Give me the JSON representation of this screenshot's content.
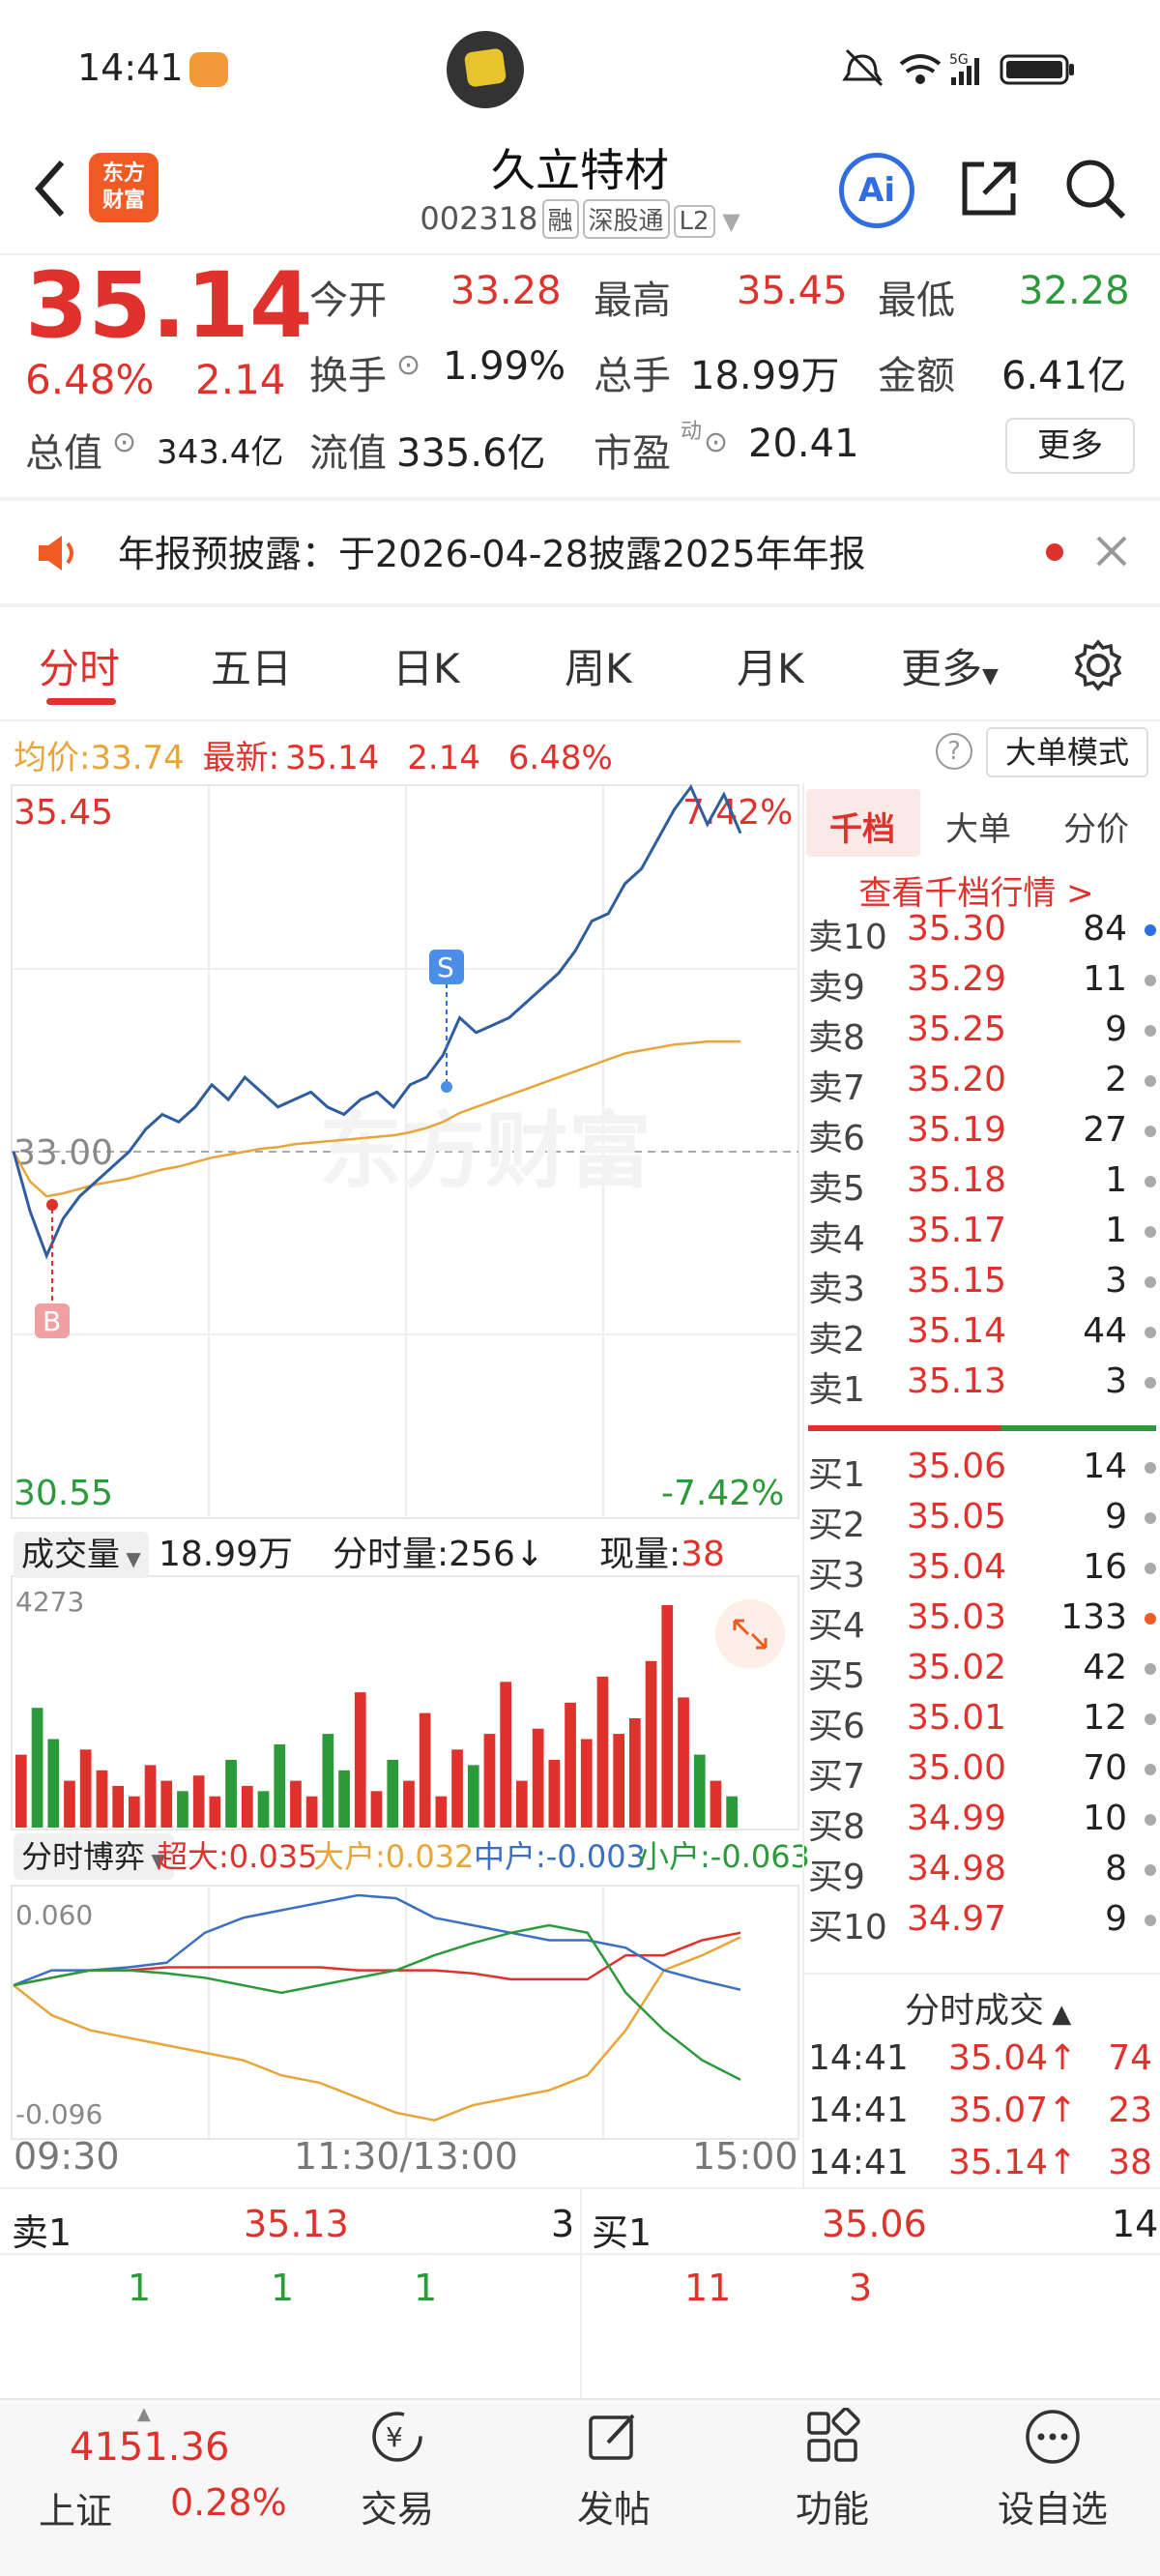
{
  "status": {
    "time": "14:41",
    "right": "5G"
  },
  "header": {
    "back": "back",
    "logo": [
      "东方",
      "财富"
    ],
    "title": "久立特材",
    "code": "002318",
    "badges": [
      "融",
      "深股通",
      "L2"
    ],
    "ai": "Ai"
  },
  "quote": {
    "price": "35.14",
    "change_pct": "6.48%",
    "change_abs": "2.14",
    "open_label": "今开",
    "open": "33.28",
    "high_label": "最高",
    "high": "35.45",
    "low_label": "最低",
    "low": "32.28",
    "turnover_label": "换手",
    "turnover": "1.99%",
    "volume_label": "总手",
    "volume": "18.99万",
    "amount_label": "金额",
    "amount": "6.41亿",
    "mktcap_label": "总值",
    "mktcap": "343.4亿",
    "float_label": "流值",
    "float": "335.6亿",
    "pe_label": "市盈",
    "pe_sup": "动",
    "pe": "20.41",
    "more": "更多"
  },
  "notice": {
    "text": "年报预披露：于2026-04-28披露2025年年报"
  },
  "tabs": [
    "分时",
    "五日",
    "日K",
    "周K",
    "月K",
    "更多"
  ],
  "avg": {
    "avg_label": "均价:",
    "avg": "33.74",
    "last_label": "最新:",
    "last": "35.14",
    "chg": "2.14",
    "pct": "6.48%",
    "help": "?",
    "bigorder": "大单模式"
  },
  "chart_labels": {
    "top_price": "35.45",
    "top_pct": "7.42%",
    "mid_price": "33.00",
    "bottom_price": "30.55",
    "bottom_pct": "-7.42%",
    "marker_s": "S",
    "marker_b": "B",
    "vol_max": "4273",
    "bo_max": "0.060",
    "bo_min": "-0.096",
    "watermark": "东方财富"
  },
  "volume_info": {
    "selector": "成交量",
    "total": "18.99万",
    "minute_label": "分时量:256↓",
    "now_label": "现量:",
    "now": "38"
  },
  "bo_info": {
    "selector": "分时博弈",
    "super_label": "超大:",
    "super": "0.035",
    "big_label": "大户:",
    "big": "0.032",
    "mid_label": "中户:",
    "mid": "-0.003",
    "small_label": "小户:",
    "small": "-0.063"
  },
  "time_axis": [
    "09:30",
    "11:30/13:00",
    "15:00"
  ],
  "orderbook": {
    "tabs": [
      "千档",
      "大单",
      "分价"
    ],
    "link": "查看千档行情 >",
    "asks": [
      {
        "lbl": "卖10",
        "px": "35.30",
        "qty": "84",
        "dot": "#2f6de1"
      },
      {
        "lbl": "卖9",
        "px": "35.29",
        "qty": "11",
        "dot": "#aaa"
      },
      {
        "lbl": "卖8",
        "px": "35.25",
        "qty": "9",
        "dot": "#aaa"
      },
      {
        "lbl": "卖7",
        "px": "35.20",
        "qty": "2",
        "dot": "#aaa"
      },
      {
        "lbl": "卖6",
        "px": "35.19",
        "qty": "27",
        "dot": "#aaa"
      },
      {
        "lbl": "卖5",
        "px": "35.18",
        "qty": "1",
        "dot": "#aaa"
      },
      {
        "lbl": "卖4",
        "px": "35.17",
        "qty": "1",
        "dot": "#aaa"
      },
      {
        "lbl": "卖3",
        "px": "35.15",
        "qty": "3",
        "dot": "#aaa"
      },
      {
        "lbl": "卖2",
        "px": "35.14",
        "qty": "44",
        "dot": "#aaa"
      },
      {
        "lbl": "卖1",
        "px": "35.13",
        "qty": "3",
        "dot": "#aaa"
      }
    ],
    "bids": [
      {
        "lbl": "买1",
        "px": "35.06",
        "qty": "14",
        "dot": "#aaa"
      },
      {
        "lbl": "买2",
        "px": "35.05",
        "qty": "9",
        "dot": "#aaa"
      },
      {
        "lbl": "买3",
        "px": "35.04",
        "qty": "16",
        "dot": "#aaa"
      },
      {
        "lbl": "买4",
        "px": "35.03",
        "qty": "133",
        "dot": "#f05a24"
      },
      {
        "lbl": "买5",
        "px": "35.02",
        "qty": "42",
        "dot": "#aaa"
      },
      {
        "lbl": "买6",
        "px": "35.01",
        "qty": "12",
        "dot": "#aaa"
      },
      {
        "lbl": "买7",
        "px": "35.00",
        "qty": "70",
        "dot": "#aaa"
      },
      {
        "lbl": "买8",
        "px": "34.99",
        "qty": "10",
        "dot": "#aaa"
      },
      {
        "lbl": "买9",
        "px": "34.98",
        "qty": "8",
        "dot": "#aaa"
      },
      {
        "lbl": "买10",
        "px": "34.97",
        "qty": "9",
        "dot": "#aaa"
      }
    ],
    "trades_title": "分时成交",
    "trades": [
      {
        "t": "14:41",
        "p": "35.04↑",
        "v": "74"
      },
      {
        "t": "14:41",
        "p": "35.07↑",
        "v": "23"
      },
      {
        "t": "14:41",
        "p": "35.14↑",
        "v": "38"
      }
    ]
  },
  "level1": {
    "ask_label": "卖1",
    "ask_px": "35.13",
    "ask_qty": "3",
    "bid_label": "买1",
    "bid_px": "35.06",
    "bid_qty": "14",
    "ask_details": [
      "1",
      "1",
      "1"
    ],
    "bid_details": [
      "11",
      "3"
    ]
  },
  "bottom": {
    "index_value": "4151.36",
    "index_name": "上证",
    "index_pct": "0.28%",
    "nav": [
      "交易",
      "发帖",
      "功能",
      "设自选"
    ]
  },
  "chart_data": {
    "type": "line",
    "price_range": [
      30.55,
      35.45
    ],
    "prev_close": 33.0,
    "price_series": [
      33.0,
      32.6,
      32.3,
      32.55,
      32.7,
      32.8,
      32.9,
      33.0,
      33.15,
      33.25,
      33.2,
      33.3,
      33.45,
      33.35,
      33.5,
      33.4,
      33.3,
      33.35,
      33.4,
      33.3,
      33.25,
      33.35,
      33.4,
      33.3,
      33.45,
      33.5,
      33.65,
      33.9,
      33.8,
      33.85,
      33.9,
      34.0,
      34.1,
      34.2,
      34.35,
      34.55,
      34.6,
      34.8,
      34.9,
      35.1,
      35.3,
      35.45,
      35.2,
      35.4,
      35.14
    ],
    "avg_series": [
      33.0,
      32.8,
      32.7,
      32.72,
      32.75,
      32.78,
      32.8,
      32.82,
      32.85,
      32.88,
      32.9,
      32.93,
      32.96,
      32.98,
      33.0,
      33.02,
      33.03,
      33.05,
      33.06,
      33.07,
      33.08,
      33.09,
      33.1,
      33.11,
      33.13,
      33.16,
      33.2,
      33.26,
      33.3,
      33.34,
      33.38,
      33.42,
      33.46,
      33.5,
      33.54,
      33.58,
      33.62,
      33.66,
      33.68,
      33.7,
      33.72,
      33.73,
      33.74,
      33.74,
      33.74
    ],
    "volume_max": 4273,
    "volumes": [
      1400,
      2300,
      1700,
      900,
      1500,
      1100,
      800,
      600,
      1200,
      900,
      700,
      1000,
      600,
      1300,
      800,
      700,
      1600,
      900,
      600,
      1800,
      1100,
      2600,
      700,
      1300,
      900,
      2200,
      600,
      1500,
      1200,
      1800,
      2800,
      900,
      1900,
      1300,
      2400,
      1700,
      2900,
      1800,
      2100,
      3200,
      4273,
      2500,
      1400,
      900,
      600
    ],
    "bo_range": [
      -0.096,
      0.06
    ],
    "bo_series": [
      {
        "name": "超大",
        "color": "#e0322d",
        "values": [
          0.0,
          0.005,
          0.01,
          0.01,
          0.012,
          0.012,
          0.012,
          0.012,
          0.012,
          0.01,
          0.01,
          0.01,
          0.008,
          0.004,
          0.004,
          0.004,
          0.02,
          0.02,
          0.03,
          0.035
        ]
      },
      {
        "name": "大户",
        "color": "#e8a53a",
        "values": [
          0.0,
          -0.02,
          -0.03,
          -0.035,
          -0.04,
          -0.045,
          -0.05,
          -0.06,
          -0.065,
          -0.075,
          -0.085,
          -0.09,
          -0.08,
          -0.075,
          -0.07,
          -0.06,
          -0.03,
          0.01,
          0.02,
          0.032
        ]
      },
      {
        "name": "中户",
        "color": "#3b6fc4",
        "values": [
          0.0,
          0.01,
          0.01,
          0.012,
          0.015,
          0.035,
          0.045,
          0.05,
          0.055,
          0.06,
          0.058,
          0.045,
          0.04,
          0.035,
          0.03,
          0.03,
          0.025,
          0.01,
          0.003,
          -0.003
        ]
      },
      {
        "name": "小户",
        "color": "#2a9a3a",
        "values": [
          0.0,
          0.005,
          0.01,
          0.01,
          0.008,
          0.005,
          0.0,
          -0.005,
          0.0,
          0.005,
          0.01,
          0.02,
          0.028,
          0.035,
          0.04,
          0.035,
          -0.005,
          -0.03,
          -0.05,
          -0.063
        ]
      }
    ]
  }
}
